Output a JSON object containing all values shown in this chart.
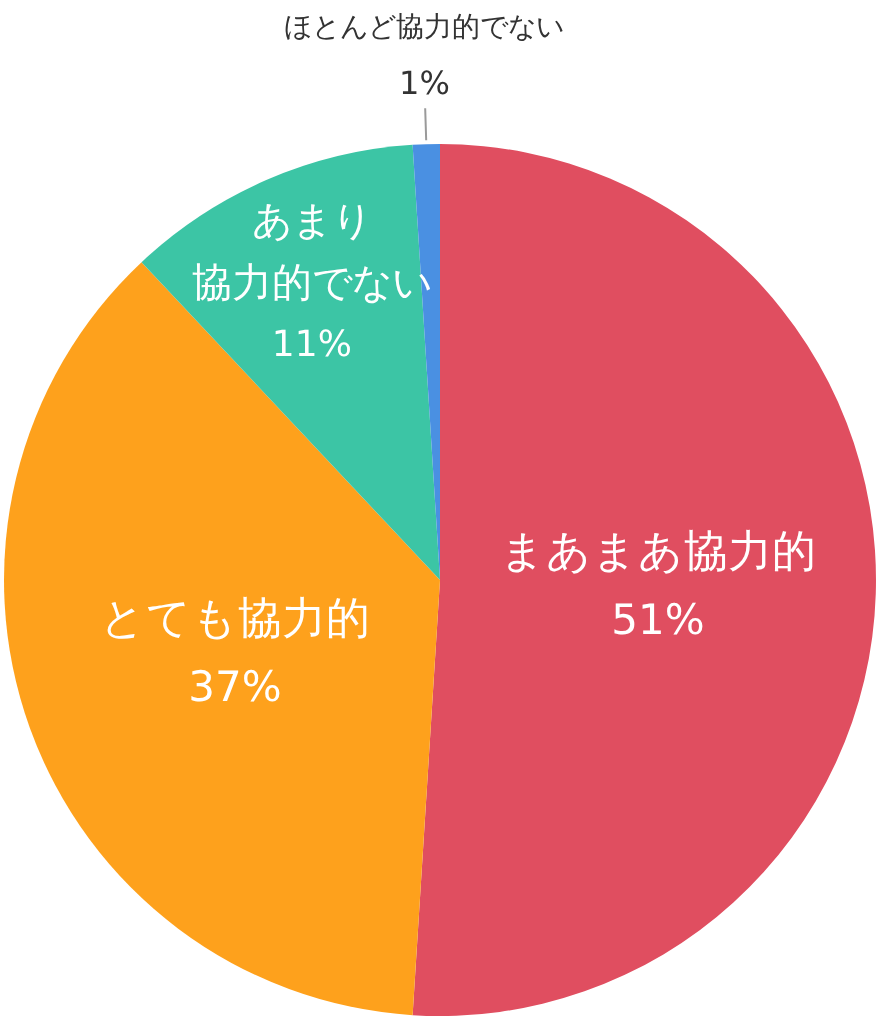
{
  "chart_data": {
    "type": "pie",
    "categories": [
      "まあまあ協力的",
      "とても協力的",
      "あまり協力的でない",
      "ほとんど協力的でない"
    ],
    "values": [
      51,
      37,
      11,
      1
    ],
    "colors": [
      "#e04e60",
      "#fea11c",
      "#3cc5a5",
      "#4a90e2"
    ],
    "value_labels": [
      "51%",
      "37%",
      "11%",
      "1%"
    ]
  }
}
